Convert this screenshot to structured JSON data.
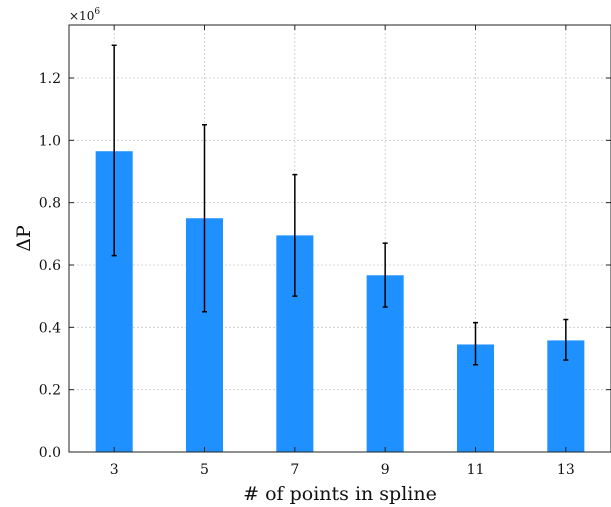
{
  "chart_data": {
    "type": "bar",
    "categories": [
      "3",
      "5",
      "7",
      "9",
      "11",
      "13"
    ],
    "values": [
      0.965,
      0.75,
      0.695,
      0.567,
      0.345,
      0.358
    ],
    "errors": [
      {
        "low": 0.63,
        "high": 1.305
      },
      {
        "low": 0.45,
        "high": 1.05
      },
      {
        "low": 0.5,
        "high": 0.89
      },
      {
        "low": 0.465,
        "high": 0.67
      },
      {
        "low": 0.28,
        "high": 0.415
      },
      {
        "low": 0.295,
        "high": 0.425
      }
    ],
    "xlabel": "# of points in spline",
    "ylabel": "ΔP",
    "multiplier": {
      "base": "×10",
      "exponent": "6"
    },
    "ylim": [
      0,
      1.37
    ],
    "yticks": [
      0.0,
      0.2,
      0.4,
      0.6,
      0.8,
      1.0,
      1.2
    ],
    "ytick_labels": [
      "0.0",
      "0.2",
      "0.4",
      "0.6",
      "0.8",
      "1.0",
      "1.2"
    ],
    "grid": true,
    "bar_color": "#1e90ff",
    "error_color": "#000000"
  }
}
